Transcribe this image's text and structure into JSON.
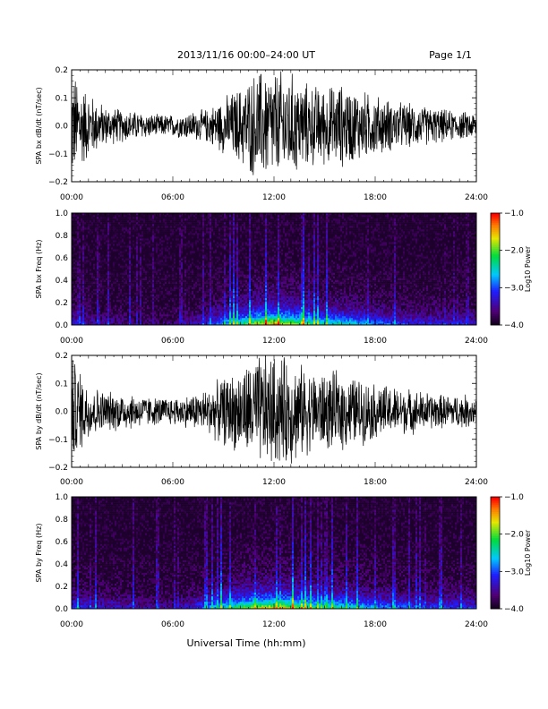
{
  "header": {
    "title": "2013/11/16  00:00–24:00 UT",
    "page": "Page 1/1"
  },
  "xlabel": "Universal Time (hh:mm)",
  "chart_data": [
    {
      "type": "line",
      "ylabel": "SPA bx dB/dt (nT/sec)",
      "xlim": [
        0,
        24
      ],
      "ylim": [
        -0.2,
        0.2
      ],
      "yticks": [
        -0.2,
        -0.1,
        0.0,
        0.1,
        0.2
      ],
      "ytick_labels": [
        "−0.2",
        "−0.1",
        "0.0",
        "0.1",
        "0.2"
      ],
      "xticks": [
        0,
        6,
        12,
        18,
        24
      ],
      "xtick_labels": [
        "00:00",
        "06:00",
        "12:00",
        "18:00",
        "24:00"
      ],
      "series": [
        {
          "color": "#000000",
          "x": [
            0,
            1,
            2,
            3,
            4,
            5,
            6,
            7,
            8,
            9,
            10,
            11,
            12,
            13,
            14,
            15,
            16,
            17,
            18,
            19,
            20,
            21,
            22,
            23,
            24
          ],
          "amplitude": [
            0.2,
            0.12,
            0.07,
            0.06,
            0.05,
            0.04,
            0.04,
            0.05,
            0.06,
            0.1,
            0.14,
            0.2,
            0.2,
            0.19,
            0.15,
            0.14,
            0.15,
            0.13,
            0.11,
            0.09,
            0.08,
            0.07,
            0.06,
            0.05,
            0.05
          ]
        }
      ]
    },
    {
      "type": "heatmap",
      "ylabel": "SPA bx Freq (Hz)",
      "xlim": [
        0,
        24
      ],
      "ylim": [
        0,
        1
      ],
      "yticks": [
        0.0,
        0.2,
        0.4,
        0.6,
        0.8,
        1.0
      ],
      "ytick_labels": [
        "0.0",
        "0.2",
        "0.4",
        "0.6",
        "0.8",
        "1.0"
      ],
      "xticks": [
        0,
        6,
        12,
        18,
        24
      ],
      "xtick_labels": [
        "00:00",
        "06:00",
        "12:00",
        "18:00",
        "24:00"
      ],
      "colorbar": {
        "label": "Log10 Power",
        "range": [
          -4.0,
          -1.0
        ],
        "ticks": [
          -4.0,
          -3.0,
          -2.0,
          -1.0
        ],
        "tick_labels": [
          "−4.0",
          "−3.0",
          "−2.0",
          "−1.0"
        ]
      },
      "low_freq_peak_log_power": [
        -3.2,
        -3.5,
        -3.6,
        -3.6,
        -3.7,
        -3.7,
        -3.7,
        -3.5,
        -3.3,
        -2.8,
        -2.5,
        -2.0,
        -1.8,
        -2.0,
        -2.4,
        -2.6,
        -2.6,
        -2.8,
        -3.0,
        -3.1,
        -3.2,
        -3.3,
        -3.3,
        -3.3,
        -3.4
      ]
    },
    {
      "type": "line",
      "ylabel": "SPA by dB/dt (nT/sec)",
      "xlim": [
        0,
        24
      ],
      "ylim": [
        -0.2,
        0.2
      ],
      "yticks": [
        -0.2,
        -0.1,
        0.0,
        0.1,
        0.2
      ],
      "ytick_labels": [
        "−0.2",
        "−0.1",
        "0.0",
        "0.1",
        "0.2"
      ],
      "xticks": [
        0,
        6,
        12,
        18,
        24
      ],
      "xtick_labels": [
        "00:00",
        "06:00",
        "12:00",
        "18:00",
        "24:00"
      ],
      "series": [
        {
          "color": "#000000",
          "x": [
            0,
            1,
            2,
            3,
            4,
            5,
            6,
            7,
            8,
            9,
            10,
            11,
            12,
            13,
            14,
            15,
            16,
            17,
            18,
            19,
            20,
            21,
            22,
            23,
            24
          ],
          "amplitude": [
            0.2,
            0.1,
            0.07,
            0.07,
            0.06,
            0.05,
            0.05,
            0.06,
            0.08,
            0.12,
            0.15,
            0.2,
            0.2,
            0.19,
            0.15,
            0.14,
            0.14,
            0.12,
            0.1,
            0.09,
            0.08,
            0.07,
            0.06,
            0.06,
            0.06
          ]
        }
      ]
    },
    {
      "type": "heatmap",
      "ylabel": "SPA by Freq (Hz)",
      "xlim": [
        0,
        24
      ],
      "ylim": [
        0,
        1
      ],
      "yticks": [
        0.0,
        0.2,
        0.4,
        0.6,
        0.8,
        1.0
      ],
      "ytick_labels": [
        "0.0",
        "0.2",
        "0.4",
        "0.6",
        "0.8",
        "1.0"
      ],
      "xticks": [
        0,
        6,
        12,
        18,
        24
      ],
      "xtick_labels": [
        "00:00",
        "06:00",
        "12:00",
        "18:00",
        "24:00"
      ],
      "colorbar": {
        "label": "Log10 Power",
        "range": [
          -4.0,
          -1.0
        ],
        "ticks": [
          -4.0,
          -3.0,
          -2.0,
          -1.0
        ],
        "tick_labels": [
          "−4.0",
          "−3.0",
          "−2.0",
          "−1.0"
        ]
      },
      "low_freq_peak_log_power": [
        -3.1,
        -3.3,
        -3.4,
        -3.4,
        -3.5,
        -3.6,
        -3.6,
        -3.4,
        -3.0,
        -2.6,
        -2.3,
        -2.0,
        -1.9,
        -2.0,
        -2.3,
        -2.5,
        -2.5,
        -2.7,
        -2.9,
        -3.0,
        -3.1,
        -3.2,
        -3.2,
        -3.2,
        -3.3
      ]
    }
  ]
}
